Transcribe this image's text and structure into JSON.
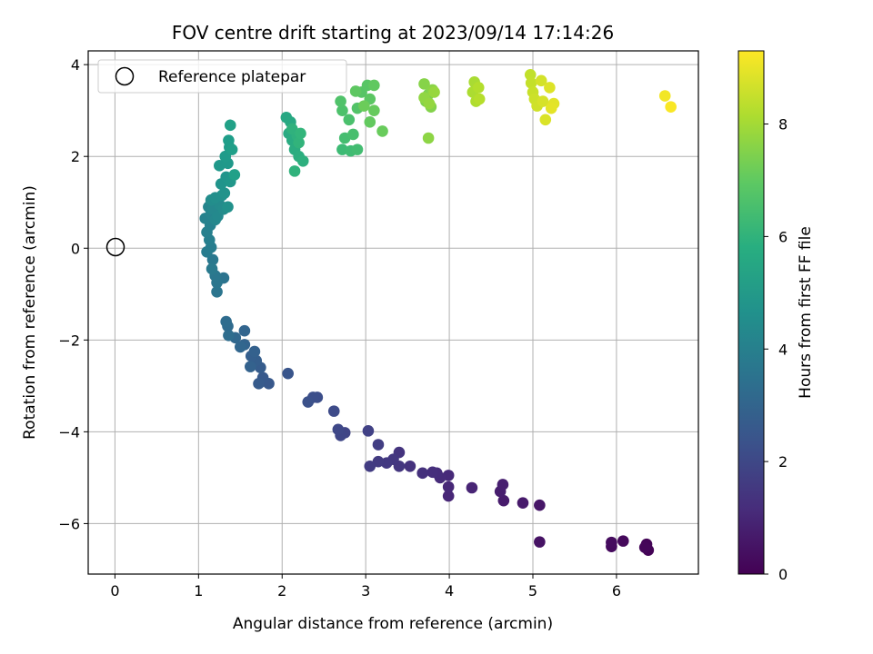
{
  "chart_data": {
    "type": "scatter",
    "title": "FOV centre drift starting at 2023/09/14 17:14:26",
    "xlabel": "Angular distance from reference (arcmin)",
    "ylabel": "Rotation from reference (arcmin)",
    "xlim": [
      -0.32,
      6.98
    ],
    "ylim": [
      -7.1,
      4.3
    ],
    "xticks": [
      0,
      1,
      2,
      3,
      4,
      5,
      6
    ],
    "yticks": [
      -6,
      -4,
      -2,
      0,
      2,
      4
    ],
    "xtick_labels": [
      "0",
      "1",
      "2",
      "3",
      "4",
      "5",
      "6"
    ],
    "ytick_labels": [
      "−6",
      "−4",
      "−2",
      "0",
      "2",
      "4"
    ],
    "grid": true,
    "colormap": "viridis",
    "legend": {
      "placement": "top-left",
      "entries": [
        {
          "label": "Reference platepar",
          "marker": "open-circle"
        }
      ]
    },
    "reference_point": {
      "x": 0,
      "y": 0
    },
    "colorbar": {
      "label": "Hours from first FF file",
      "range": [
        0,
        9.3
      ],
      "ticks": [
        0,
        2,
        4,
        6,
        8
      ],
      "tick_labels": [
        "0",
        "2",
        "4",
        "6",
        "8"
      ]
    },
    "points": [
      [
        6.38,
        -6.58,
        0.05
      ],
      [
        6.36,
        -6.45,
        0.1
      ],
      [
        6.34,
        -6.52,
        0.15
      ],
      [
        6.08,
        -6.38,
        0.2
      ],
      [
        5.94,
        -6.5,
        0.25
      ],
      [
        5.94,
        -6.41,
        0.3
      ],
      [
        5.08,
        -6.4,
        0.45
      ],
      [
        5.08,
        -5.6,
        0.55
      ],
      [
        4.88,
        -5.55,
        0.65
      ],
      [
        4.65,
        -5.5,
        0.7
      ],
      [
        4.61,
        -5.3,
        0.75
      ],
      [
        4.64,
        -5.15,
        0.8
      ],
      [
        4.27,
        -5.22,
        0.95
      ],
      [
        3.99,
        -5.4,
        1.0
      ],
      [
        3.99,
        -5.2,
        1.05
      ],
      [
        3.99,
        -4.95,
        1.1
      ],
      [
        3.89,
        -5.0,
        1.15
      ],
      [
        3.85,
        -4.9,
        1.2
      ],
      [
        3.8,
        -4.88,
        1.25
      ],
      [
        3.68,
        -4.9,
        1.3
      ],
      [
        3.53,
        -4.75,
        1.35
      ],
      [
        3.4,
        -4.45,
        1.4
      ],
      [
        3.4,
        -4.75,
        1.45
      ],
      [
        3.33,
        -4.6,
        1.5
      ],
      [
        3.25,
        -4.68,
        1.55
      ],
      [
        3.15,
        -4.65,
        1.6
      ],
      [
        3.05,
        -4.75,
        1.65
      ],
      [
        3.15,
        -4.28,
        1.7
      ],
      [
        3.03,
        -3.98,
        1.8
      ],
      [
        2.75,
        -4.02,
        1.9
      ],
      [
        2.7,
        -4.08,
        1.95
      ],
      [
        2.67,
        -3.95,
        2.0
      ],
      [
        2.62,
        -3.55,
        2.1
      ],
      [
        2.42,
        -3.25,
        2.2
      ],
      [
        2.37,
        -3.25,
        2.25
      ],
      [
        2.31,
        -3.35,
        2.3
      ],
      [
        2.07,
        -2.73,
        2.45
      ],
      [
        1.84,
        -2.95,
        2.55
      ],
      [
        1.77,
        -2.82,
        2.6
      ],
      [
        1.72,
        -2.95,
        2.65
      ],
      [
        1.74,
        -2.6,
        2.7
      ],
      [
        1.69,
        -2.45,
        2.75
      ],
      [
        1.63,
        -2.35,
        2.8
      ],
      [
        1.67,
        -2.25,
        2.85
      ],
      [
        1.62,
        -2.58,
        2.9
      ],
      [
        1.55,
        -2.1,
        2.95
      ],
      [
        1.55,
        -1.8,
        3.0
      ],
      [
        1.5,
        -2.15,
        3.05
      ],
      [
        1.44,
        -1.95,
        3.1
      ],
      [
        1.35,
        -1.7,
        3.2
      ],
      [
        1.33,
        -1.6,
        3.25
      ],
      [
        1.36,
        -1.9,
        3.3
      ],
      [
        1.3,
        -0.65,
        3.55
      ],
      [
        1.22,
        -0.95,
        3.6
      ],
      [
        1.22,
        -0.75,
        3.65
      ],
      [
        1.2,
        -0.6,
        3.7
      ],
      [
        1.17,
        -0.25,
        3.75
      ],
      [
        1.16,
        -0.45,
        3.8
      ],
      [
        1.1,
        -0.08,
        3.9
      ],
      [
        1.15,
        0.02,
        3.95
      ],
      [
        1.13,
        0.18,
        4.0
      ],
      [
        1.1,
        0.35,
        4.05
      ],
      [
        1.14,
        0.5,
        4.1
      ],
      [
        1.08,
        0.65,
        4.15
      ],
      [
        1.15,
        0.75,
        4.2
      ],
      [
        1.12,
        0.9,
        4.25
      ],
      [
        1.2,
        0.62,
        4.3
      ],
      [
        1.17,
        0.85,
        4.35
      ],
      [
        1.23,
        0.7,
        4.4
      ],
      [
        1.25,
        0.95,
        4.45
      ],
      [
        1.3,
        0.85,
        4.5
      ],
      [
        1.15,
        1.05,
        4.55
      ],
      [
        1.2,
        1.1,
        4.6
      ],
      [
        1.28,
        1.15,
        4.65
      ],
      [
        1.35,
        0.9,
        4.7
      ],
      [
        1.31,
        1.2,
        4.75
      ],
      [
        1.27,
        1.4,
        4.8
      ],
      [
        1.33,
        1.55,
        4.85
      ],
      [
        1.38,
        1.45,
        4.9
      ],
      [
        1.25,
        1.8,
        4.95
      ],
      [
        1.35,
        1.85,
        5.0
      ],
      [
        1.32,
        2.0,
        5.05
      ],
      [
        1.37,
        2.2,
        5.1
      ],
      [
        1.36,
        2.35,
        5.15
      ],
      [
        1.4,
        2.15,
        5.2
      ],
      [
        1.43,
        1.6,
        5.25
      ],
      [
        1.38,
        2.68,
        5.3
      ],
      [
        2.05,
        2.85,
        5.55
      ],
      [
        2.1,
        2.75,
        5.6
      ],
      [
        2.08,
        2.5,
        5.65
      ],
      [
        2.12,
        2.35,
        5.7
      ],
      [
        2.15,
        2.15,
        5.75
      ],
      [
        2.2,
        2.0,
        5.8
      ],
      [
        2.25,
        1.9,
        5.85
      ],
      [
        2.18,
        2.45,
        5.9
      ],
      [
        2.12,
        2.6,
        5.95
      ],
      [
        2.15,
        1.68,
        6.0
      ],
      [
        2.2,
        2.3,
        6.05
      ],
      [
        2.22,
        2.5,
        6.1
      ],
      [
        2.72,
        2.15,
        6.35
      ],
      [
        2.82,
        2.12,
        6.4
      ],
      [
        2.9,
        2.15,
        6.45
      ],
      [
        2.75,
        2.4,
        6.5
      ],
      [
        2.85,
        2.48,
        6.55
      ],
      [
        2.8,
        2.8,
        6.6
      ],
      [
        2.72,
        3.0,
        6.65
      ],
      [
        2.7,
        3.2,
        6.7
      ],
      [
        2.9,
        3.05,
        6.75
      ],
      [
        2.95,
        3.4,
        6.8
      ],
      [
        3.02,
        3.55,
        6.85
      ],
      [
        3.05,
        3.25,
        6.9
      ],
      [
        2.88,
        3.42,
        6.95
      ],
      [
        3.1,
        3.55,
        7.0
      ],
      [
        3.05,
        2.75,
        7.05
      ],
      [
        3.1,
        3.0,
        7.1
      ],
      [
        3.2,
        2.55,
        7.15
      ],
      [
        2.98,
        3.1,
        7.2
      ],
      [
        3.75,
        3.35,
        7.45
      ],
      [
        3.72,
        3.2,
        7.5
      ],
      [
        3.78,
        3.08,
        7.55
      ],
      [
        3.7,
        3.58,
        7.6
      ],
      [
        3.8,
        3.45,
        7.65
      ],
      [
        3.75,
        2.4,
        7.7
      ],
      [
        3.7,
        3.28,
        7.75
      ],
      [
        3.76,
        3.15,
        7.8
      ],
      [
        3.82,
        3.4,
        7.85
      ],
      [
        4.3,
        3.62,
        8.1
      ],
      [
        4.28,
        3.4,
        8.15
      ],
      [
        4.32,
        3.2,
        8.2
      ],
      [
        4.35,
        3.5,
        8.25
      ],
      [
        4.36,
        3.25,
        8.3
      ],
      [
        4.97,
        3.78,
        8.45
      ],
      [
        4.98,
        3.6,
        8.5
      ],
      [
        5.0,
        3.4,
        8.55
      ],
      [
        5.02,
        3.25,
        8.6
      ],
      [
        5.05,
        3.1,
        8.65
      ],
      [
        5.1,
        3.65,
        8.7
      ],
      [
        5.12,
        3.2,
        8.75
      ],
      [
        5.15,
        2.8,
        8.8
      ],
      [
        5.2,
        3.5,
        8.85
      ],
      [
        5.25,
        3.15,
        8.9
      ],
      [
        5.22,
        3.05,
        8.95
      ],
      [
        6.58,
        3.32,
        9.15
      ],
      [
        6.65,
        3.08,
        9.25
      ]
    ]
  }
}
